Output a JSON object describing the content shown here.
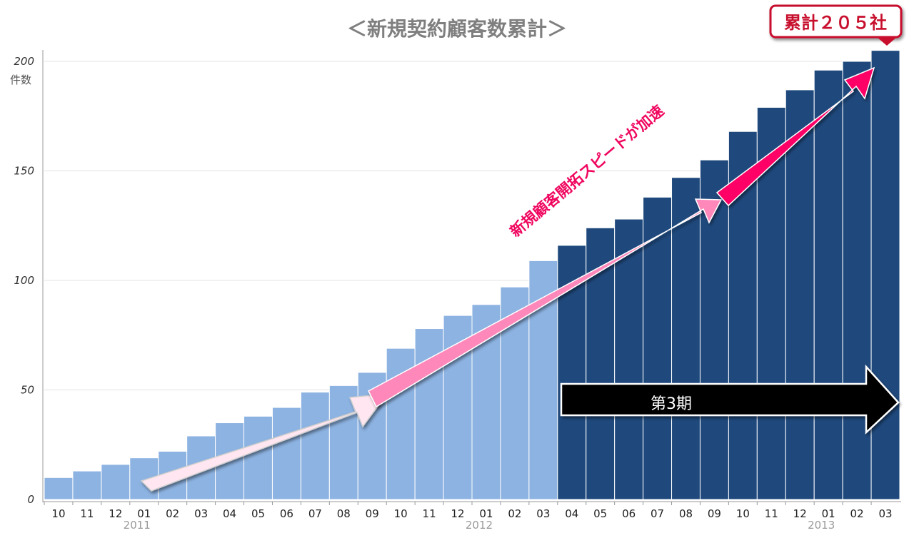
{
  "chart_data": {
    "type": "bar",
    "title": "＜新規契約顧客数累計＞",
    "ylabel": "件数",
    "xlabel": "",
    "ylim": [
      0,
      205
    ],
    "yticks": [
      0,
      50,
      100,
      150,
      200
    ],
    "grid": true,
    "categories": [
      "10",
      "11",
      "12",
      "01",
      "02",
      "03",
      "04",
      "05",
      "06",
      "07",
      "08",
      "09",
      "10",
      "11",
      "12",
      "01",
      "02",
      "03",
      "04",
      "05",
      "06",
      "07",
      "08",
      "09",
      "10",
      "11",
      "12",
      "01",
      "02",
      "03"
    ],
    "years": [
      {
        "label": "2011",
        "under_index": 3
      },
      {
        "label": "2012",
        "under_index": 15
      },
      {
        "label": "2013",
        "under_index": 27
      }
    ],
    "values": [
      10,
      13,
      16,
      19,
      22,
      29,
      35,
      38,
      42,
      49,
      52,
      58,
      69,
      78,
      84,
      89,
      97,
      109,
      116,
      124,
      128,
      138,
      147,
      155,
      168,
      179,
      187,
      196,
      200,
      205
    ],
    "series_colors": {
      "before": "#8db3e2",
      "third_period": "#1f497d"
    },
    "third_period_start_index": 18,
    "annotations": {
      "total_callout": "累計２０５社",
      "diagonal_text": "新規顧客開拓スピードが加速",
      "period_label": "第3期"
    }
  }
}
